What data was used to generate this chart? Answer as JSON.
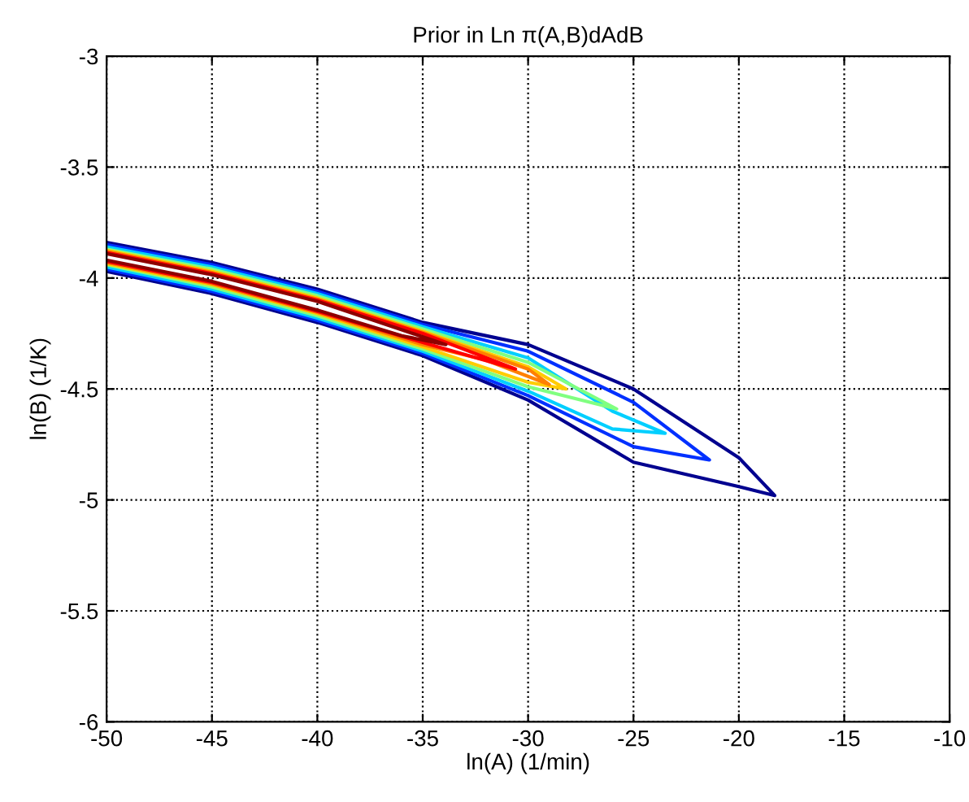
{
  "chart_data": {
    "type": "line",
    "title": "Prior in Ln π(A,B)dAdB",
    "xlabel": "ln(A) (1/min)",
    "ylabel": "ln(B) (1/K)",
    "xlim": [
      -50,
      -10
    ],
    "ylim": [
      -6,
      -3
    ],
    "xticks": [
      -50,
      -45,
      -40,
      -35,
      -30,
      -25,
      -20,
      -15,
      -10
    ],
    "yticks": [
      -6,
      -5.5,
      -5,
      -4.5,
      -4,
      -3.5,
      -3
    ],
    "grid": true,
    "marker": "none",
    "line_style": "solid",
    "series": [
      {
        "color": "#00008f",
        "x": [
          -50,
          -45,
          -40,
          -35,
          -30,
          -25,
          -20,
          -18.3,
          -20,
          -25,
          -30,
          -35,
          -40,
          -45,
          -50
        ],
        "values": [
          -3.84,
          -3.93,
          -4.05,
          -4.2,
          -4.3,
          -4.5,
          -4.81,
          -4.98,
          -4.94,
          -4.83,
          -4.55,
          -4.35,
          -4.2,
          -4.07,
          -3.97
        ]
      },
      {
        "color": "#0030ff",
        "x": [
          -50,
          -45,
          -40,
          -35,
          -30,
          -25,
          -21.4,
          -25,
          -30,
          -35,
          -40,
          -45,
          -50
        ],
        "values": [
          -3.85,
          -3.94,
          -4.06,
          -4.21,
          -4.33,
          -4.56,
          -4.82,
          -4.76,
          -4.53,
          -4.34,
          -4.19,
          -4.06,
          -3.96
        ]
      },
      {
        "color": "#00cfff",
        "x": [
          -50,
          -45,
          -40,
          -35,
          -30,
          -26,
          -23.5,
          -26,
          -30,
          -35,
          -40,
          -45,
          -50
        ],
        "values": [
          -3.86,
          -3.95,
          -4.07,
          -4.22,
          -4.36,
          -4.6,
          -4.7,
          -4.68,
          -4.51,
          -4.33,
          -4.18,
          -4.05,
          -3.95
        ]
      },
      {
        "color": "#80ff80",
        "x": [
          -50,
          -45,
          -40,
          -35,
          -30,
          -25.8,
          -30,
          -35,
          -40,
          -45,
          -50
        ],
        "values": [
          -3.87,
          -3.96,
          -4.08,
          -4.23,
          -4.38,
          -4.59,
          -4.49,
          -4.32,
          -4.17,
          -4.04,
          -3.94
        ]
      },
      {
        "color": "#ffcc00",
        "x": [
          -50,
          -45,
          -40,
          -35,
          -30,
          -28.2,
          -30,
          -35,
          -40,
          -45,
          -50
        ],
        "values": [
          -3.875,
          -3.97,
          -4.09,
          -4.24,
          -4.4,
          -4.5,
          -4.47,
          -4.31,
          -4.16,
          -4.03,
          -3.935
        ]
      },
      {
        "color": "#ff8000",
        "x": [
          -50,
          -45,
          -40,
          -35,
          -30,
          -29,
          -32,
          -35,
          -40,
          -45,
          -50
        ],
        "values": [
          -3.88,
          -3.975,
          -4.095,
          -4.245,
          -4.41,
          -4.48,
          -4.37,
          -4.3,
          -4.155,
          -4.025,
          -3.93
        ]
      },
      {
        "color": "#ff0000",
        "x": [
          -50,
          -45,
          -40,
          -35,
          -30.6,
          -35,
          -40,
          -45,
          -50
        ],
        "values": [
          -3.885,
          -3.98,
          -4.1,
          -4.25,
          -4.41,
          -4.29,
          -4.15,
          -4.02,
          -3.925
        ]
      },
      {
        "color": "#8f0000",
        "x": [
          -50,
          -45,
          -40,
          -33.9,
          -36,
          -40,
          -45,
          -50
        ],
        "values": [
          -3.89,
          -3.985,
          -4.105,
          -4.3,
          -4.26,
          -4.145,
          -4.015,
          -3.92
        ]
      }
    ]
  }
}
